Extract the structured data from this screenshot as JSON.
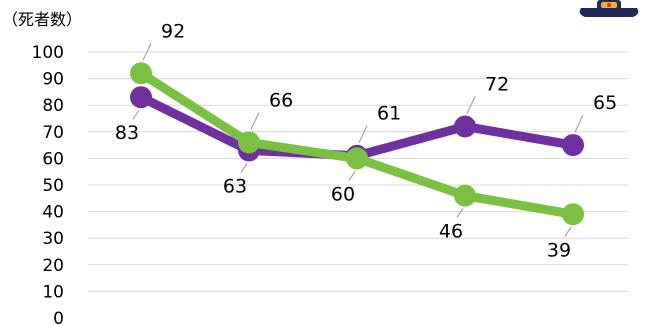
{
  "chart_data": {
    "type": "line",
    "unit_label": "（死者数）",
    "ylim": [
      0,
      100
    ],
    "yticks": [
      0,
      10,
      20,
      30,
      40,
      50,
      60,
      70,
      80,
      90,
      100
    ],
    "grid": true,
    "categories": [
      "",
      "",
      "",
      "",
      ""
    ],
    "series": [
      {
        "values": [
          83,
          63,
          61,
          72,
          65
        ],
        "color": "#7030a0"
      },
      {
        "values": [
          92,
          66,
          60,
          46,
          39
        ],
        "color": "#7ac143"
      }
    ],
    "decoration_icon": "mascot-icon"
  }
}
